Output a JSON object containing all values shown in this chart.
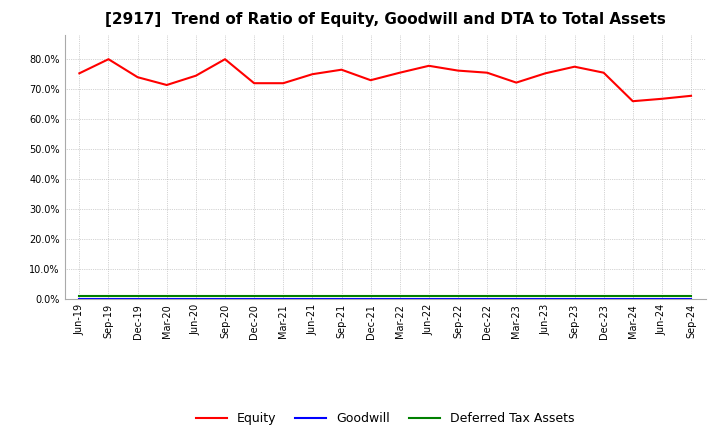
{
  "title": "[2917]  Trend of Ratio of Equity, Goodwill and DTA to Total Assets",
  "x_labels": [
    "Jun-19",
    "Sep-19",
    "Dec-19",
    "Mar-20",
    "Jun-20",
    "Sep-20",
    "Dec-20",
    "Mar-21",
    "Jun-21",
    "Sep-21",
    "Dec-21",
    "Mar-22",
    "Jun-22",
    "Sep-22",
    "Dec-22",
    "Mar-23",
    "Jun-23",
    "Sep-23",
    "Dec-23",
    "Mar-24",
    "Jun-24",
    "Sep-24"
  ],
  "equity": [
    0.753,
    0.8,
    0.74,
    0.714,
    0.745,
    0.8,
    0.72,
    0.72,
    0.75,
    0.765,
    0.73,
    0.755,
    0.778,
    0.762,
    0.755,
    0.722,
    0.753,
    0.775,
    0.755,
    0.66,
    0.668,
    0.678
  ],
  "goodwill": [
    0.002,
    0.002,
    0.002,
    0.002,
    0.002,
    0.002,
    0.002,
    0.002,
    0.002,
    0.002,
    0.002,
    0.002,
    0.002,
    0.002,
    0.002,
    0.002,
    0.002,
    0.002,
    0.002,
    0.002,
    0.002,
    0.002
  ],
  "dta": [
    0.01,
    0.01,
    0.01,
    0.01,
    0.01,
    0.01,
    0.01,
    0.01,
    0.01,
    0.01,
    0.01,
    0.01,
    0.01,
    0.01,
    0.01,
    0.01,
    0.01,
    0.01,
    0.01,
    0.01,
    0.01,
    0.01
  ],
  "equity_color": "#FF0000",
  "goodwill_color": "#0000FF",
  "dta_color": "#008000",
  "ylim": [
    0.0,
    0.88
  ],
  "yticks": [
    0.0,
    0.1,
    0.2,
    0.3,
    0.4,
    0.5,
    0.6,
    0.7,
    0.8
  ],
  "background_color": "#FFFFFF",
  "grid_color": "#AAAAAA",
  "title_fontsize": 11,
  "tick_fontsize": 7,
  "legend_labels": [
    "Equity",
    "Goodwill",
    "Deferred Tax Assets"
  ]
}
